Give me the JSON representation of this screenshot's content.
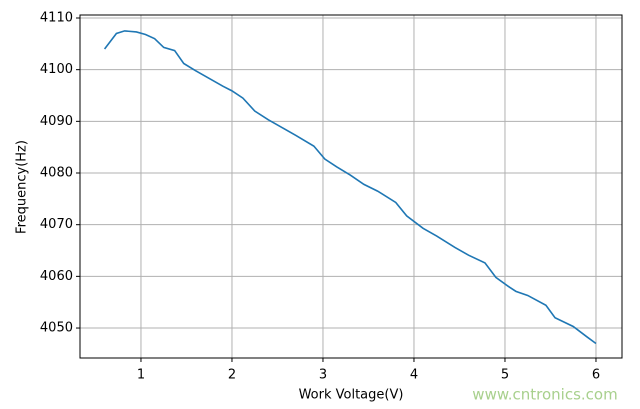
{
  "chart_data": {
    "type": "line",
    "x_label": "Work Voltage(V)",
    "y_label": "Frequency(Hz)",
    "watermark": "www.cntronics.com",
    "x": [
      0.6,
      0.73,
      0.82,
      0.95,
      1.05,
      1.15,
      1.25,
      1.37,
      1.47,
      1.6,
      1.75,
      1.9,
      2.0,
      2.12,
      2.25,
      2.4,
      2.55,
      2.7,
      2.9,
      3.02,
      3.15,
      3.3,
      3.45,
      3.6,
      3.8,
      3.92,
      4.1,
      4.25,
      4.45,
      4.6,
      4.78,
      4.9,
      5.05,
      5.12,
      5.25,
      5.45,
      5.55,
      5.75,
      5.9,
      6.0
    ],
    "series": [
      {
        "color": "#1f77b4",
        "values": [
          4104,
          4107,
          4107.5,
          4107.3,
          4106.8,
          4106,
          4104.3,
          4103.7,
          4101.2,
          4099.8,
          4098.3,
          4096.8,
          4095.9,
          4094.5,
          4092,
          4090.3,
          4088.8,
          4087.3,
          4085.2,
          4082.7,
          4081.2,
          4079.6,
          4077.8,
          4076.5,
          4074.3,
          4071.7,
          4069.3,
          4067.8,
          4065.6,
          4064.1,
          4062.6,
          4059.8,
          4057.9,
          4057.1,
          4056.3,
          4054.4,
          4052,
          4050.3,
          4048.3,
          4047
        ]
      }
    ],
    "xlim": [
      0.33,
      6.286
    ],
    "ylim": [
      4044.2,
      4110.58
    ],
    "xticks": [
      1,
      2,
      3,
      4,
      5,
      6
    ],
    "yticks": [
      4050,
      4060,
      4070,
      4080,
      4090,
      4100,
      4110
    ],
    "grid": true,
    "watermark_color": "#a8d08d"
  }
}
